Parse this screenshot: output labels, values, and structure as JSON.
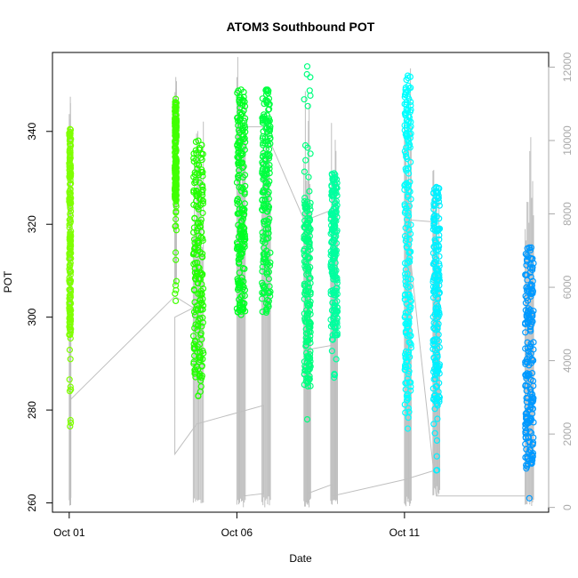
{
  "chart_data": {
    "type": "scatter",
    "title": "ATOM3 Southbound POT",
    "xlabel": "Date",
    "ylabel": "POT",
    "y2label": "",
    "x_ticks": [
      "Oct 01",
      "Oct 06",
      "Oct 11"
    ],
    "x_tick_days": [
      1,
      6,
      11
    ],
    "xlim_days": [
      0.5,
      15.3
    ],
    "ylim": [
      258,
      357
    ],
    "y_ticks": [
      260,
      280,
      300,
      320,
      340
    ],
    "y2lim": [
      -130,
      12400
    ],
    "y2_ticks": [
      0,
      2000,
      4000,
      6000,
      8000,
      10000,
      12000
    ],
    "grid": false,
    "legend": "none",
    "colors": {
      "trace_line": "#bfbfbf",
      "marker_stroke": "#666666"
    },
    "series": [
      {
        "day_start": 1.0,
        "day_end": 1.05,
        "y_min": 276.5,
        "y_max": 340.5,
        "dense_min": 296,
        "dense_max": 340,
        "color": "#7FFF00",
        "trace_min": 0,
        "trace_max": 12000
      },
      {
        "day_start": 4.15,
        "day_end": 4.2,
        "y_min": 303.5,
        "y_max": 347.0,
        "dense_min": 325,
        "dense_max": 347,
        "color": "#40FF00",
        "trace_min": 6000,
        "trace_max": 12100
      },
      {
        "day_start": 4.7,
        "day_end": 5.0,
        "y_min": 283.0,
        "y_max": 338.0,
        "dense_min": 287,
        "dense_max": 338,
        "color": "#22FF00",
        "trace_min": 0,
        "trace_max": 10600
      },
      {
        "day_start": 6.0,
        "day_end": 6.25,
        "y_min": 300.5,
        "y_max": 349.0,
        "dense_min": 301,
        "dense_max": 349,
        "color": "#00FF22",
        "trace_min": 0,
        "trace_max": 12300
      },
      {
        "day_start": 6.75,
        "day_end": 7.0,
        "y_min": 301.0,
        "y_max": 349.0,
        "dense_min": 301,
        "dense_max": 349,
        "color": "#00FF40",
        "trace_min": 0,
        "trace_max": 12000
      },
      {
        "day_start": 8.0,
        "day_end": 8.2,
        "y_min": 278.0,
        "y_max": 354.0,
        "dense_min": 285,
        "dense_max": 325,
        "color": "#00FF80",
        "trace_min": 0,
        "trace_max": 12400
      },
      {
        "day_start": 8.8,
        "day_end": 9.0,
        "y_min": 287.0,
        "y_max": 331.0,
        "dense_min": 296,
        "dense_max": 331,
        "color": "#00FF9F",
        "trace_min": 0,
        "trace_max": 10500
      },
      {
        "day_start": 11.0,
        "day_end": 11.2,
        "y_min": 276.0,
        "y_max": 352.0,
        "dense_min": 280,
        "dense_max": 352,
        "color": "#00FFFF",
        "trace_min": 0,
        "trace_max": 12000
      },
      {
        "day_start": 11.85,
        "day_end": 12.05,
        "y_min": 267.0,
        "y_max": 328.0,
        "dense_min": 280,
        "dense_max": 328,
        "color": "#00F0FF",
        "trace_min": 300,
        "trace_max": 9600
      },
      {
        "day_start": 14.6,
        "day_end": 14.85,
        "y_min": 261.0,
        "y_max": 315.0,
        "dense_min": 268,
        "dense_max": 315,
        "color": "#0099FF",
        "trace_min": 0,
        "trace_max": 10200
      }
    ],
    "connector_path": [
      [
        1.0,
        282.0
      ],
      [
        4.15,
        304.5
      ],
      [
        4.7,
        302.0
      ],
      [
        4.15,
        300.0
      ],
      [
        4.15,
        270.5
      ],
      [
        4.8,
        277.0
      ],
      [
        6.8,
        281.0
      ],
      [
        6.8,
        262.0
      ],
      [
        6.2,
        261.5
      ],
      [
        6.2,
        341.0
      ],
      [
        6.8,
        341.0
      ],
      [
        8.0,
        321.0
      ],
      [
        8.1,
        321.0
      ],
      [
        8.8,
        323.0
      ],
      [
        8.9,
        294.0
      ],
      [
        8.1,
        293.0
      ],
      [
        8.1,
        262.0
      ],
      [
        8.85,
        264.0
      ],
      [
        8.85,
        261.5
      ],
      [
        11.0,
        265.0
      ],
      [
        11.9,
        267.0
      ],
      [
        11.9,
        320.5
      ],
      [
        11.05,
        321.0
      ],
      [
        11.95,
        261.5
      ],
      [
        14.6,
        261.5
      ],
      [
        14.6,
        300.0
      ]
    ]
  }
}
